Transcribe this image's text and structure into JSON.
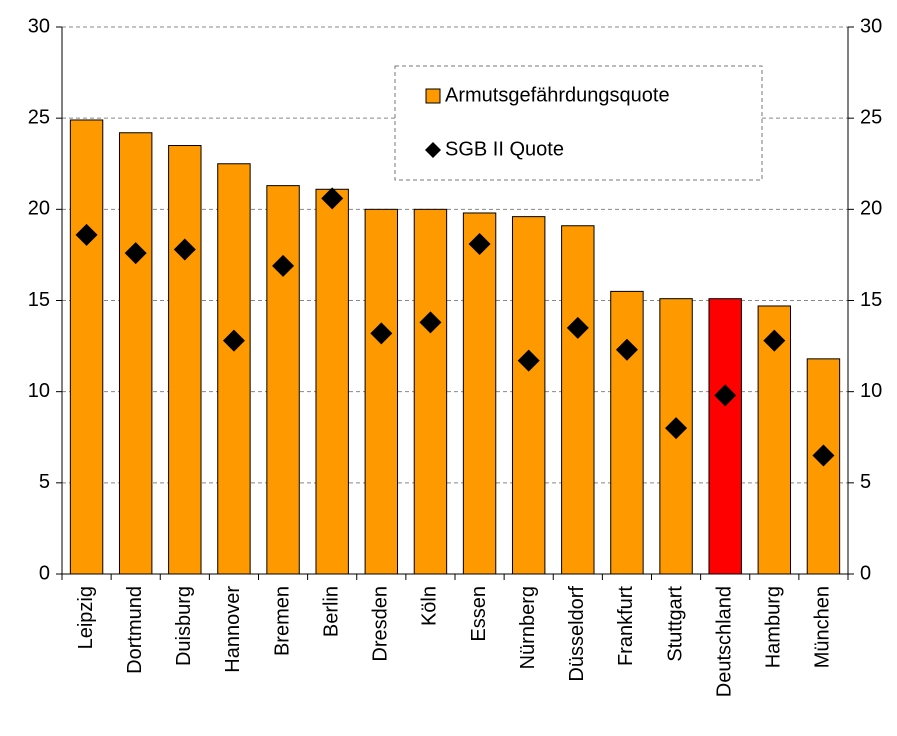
{
  "chart_data": {
    "type": "bar",
    "categories": [
      "Leipzig",
      "Dortmund",
      "Duisburg",
      "Hannover",
      "Bremen",
      "Berlin",
      "Dresden",
      "Köln",
      "Essen",
      "Nürnberg",
      "Düsseldorf",
      "Frankfurt",
      "Stuttgart",
      "Deutschland",
      "Hamburg",
      "München"
    ],
    "series": [
      {
        "name": "Armutsgefährdungsquote",
        "type": "bar",
        "color": "#ff9900",
        "colors": [
          "#ff9900",
          "#ff9900",
          "#ff9900",
          "#ff9900",
          "#ff9900",
          "#ff9900",
          "#ff9900",
          "#ff9900",
          "#ff9900",
          "#ff9900",
          "#ff9900",
          "#ff9900",
          "#ff9900",
          "#ff0000",
          "#ff9900",
          "#ff9900"
        ],
        "values": [
          24.9,
          24.2,
          23.5,
          22.5,
          21.3,
          21.1,
          20.0,
          20.0,
          19.8,
          19.6,
          19.1,
          15.5,
          15.1,
          15.1,
          14.7,
          11.8
        ]
      },
      {
        "name": "SGB II Quote",
        "type": "scatter",
        "color": "#000000",
        "values": [
          18.6,
          17.6,
          17.8,
          12.8,
          16.9,
          20.6,
          13.2,
          13.8,
          18.1,
          11.7,
          13.5,
          12.3,
          8.0,
          9.8,
          12.8,
          6.5
        ]
      }
    ],
    "ylim": [
      0,
      30
    ],
    "yticks": [
      0,
      5,
      10,
      15,
      20,
      25,
      30
    ],
    "y2lim": [
      0,
      30
    ],
    "y2ticks": [
      0,
      5,
      10,
      15,
      20,
      25,
      30
    ],
    "grid": true,
    "legend": "top-right"
  }
}
